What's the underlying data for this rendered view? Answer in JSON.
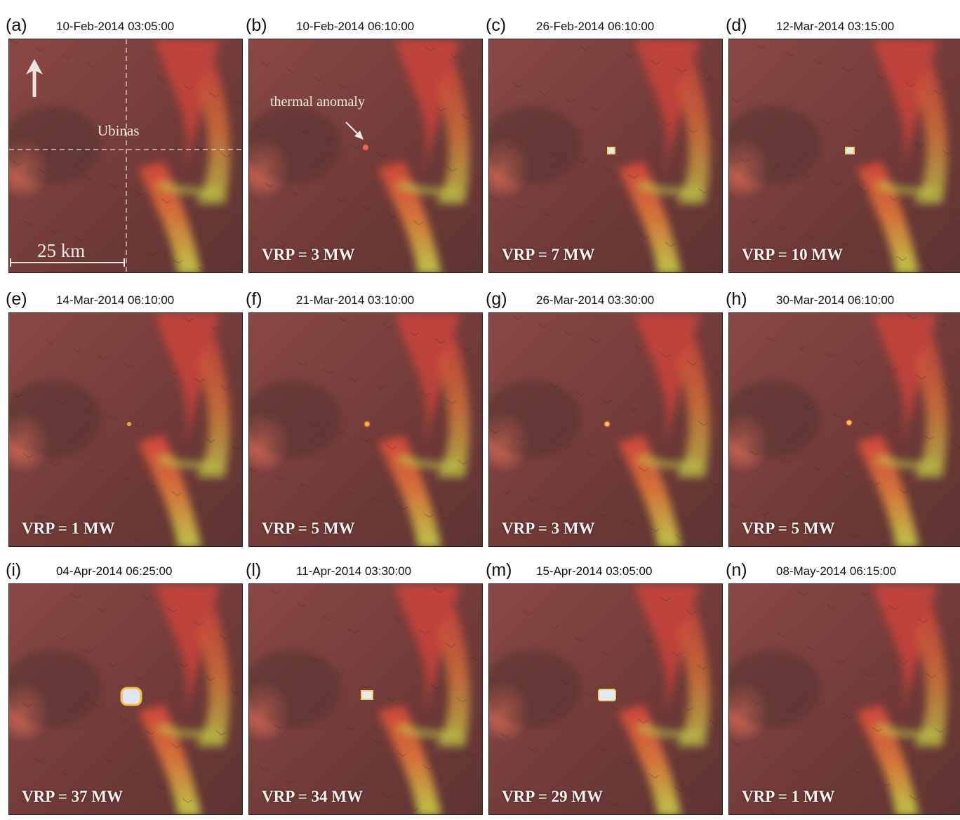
{
  "panels": [
    {
      "label": "(a)",
      "time": "10-Feb-2014 03:05:00",
      "vrp": ""
    },
    {
      "label": "(b)",
      "time": "10-Feb-2014 06:10:00",
      "vrp": "VRP = 3 MW"
    },
    {
      "label": "(c)",
      "time": "26-Feb-2014 06:10:00",
      "vrp": "VRP = 7 MW"
    },
    {
      "label": "(d)",
      "time": "12-Mar-2014 03:15:00",
      "vrp": "VRP = 10 MW"
    },
    {
      "label": "(e)",
      "time": "14-Mar-2014 06:10:00",
      "vrp": "VRP = 1 MW"
    },
    {
      "label": "(f)",
      "time": "21-Mar-2014 03:10:00",
      "vrp": "VRP = 5 MW"
    },
    {
      "label": "(g)",
      "time": "26-Mar-2014 03:30:00",
      "vrp": "VRP = 3 MW"
    },
    {
      "label": "(h)",
      "time": "30-Mar-2014 06:10:00",
      "vrp": "VRP = 5 MW"
    },
    {
      "label": "(i)",
      "time": "04-Apr-2014 06:25:00",
      "vrp": "VRP = 37 MW"
    },
    {
      "label": "(l)",
      "time": "11-Apr-2014 03:30:00",
      "vrp": "VRP = 34 MW"
    },
    {
      "label": "(m)",
      "time": "15-Apr-2014 03:05:00",
      "vrp": "VRP = 29 MW"
    },
    {
      "label": "(n)",
      "time": "08-May-2014 06:15:00",
      "vrp": "VRP = 1 MW"
    }
  ],
  "annotations": {
    "volcano_name": "Ubinas",
    "scale_label": "25 km",
    "anomaly_label": "thermal anomaly"
  },
  "colors": {
    "terrain_base": "#7d3d3a",
    "valley_highlight": "#c6d64a",
    "ridge_red": "#d8453b",
    "anomaly_hot": "#e8f0ff"
  }
}
